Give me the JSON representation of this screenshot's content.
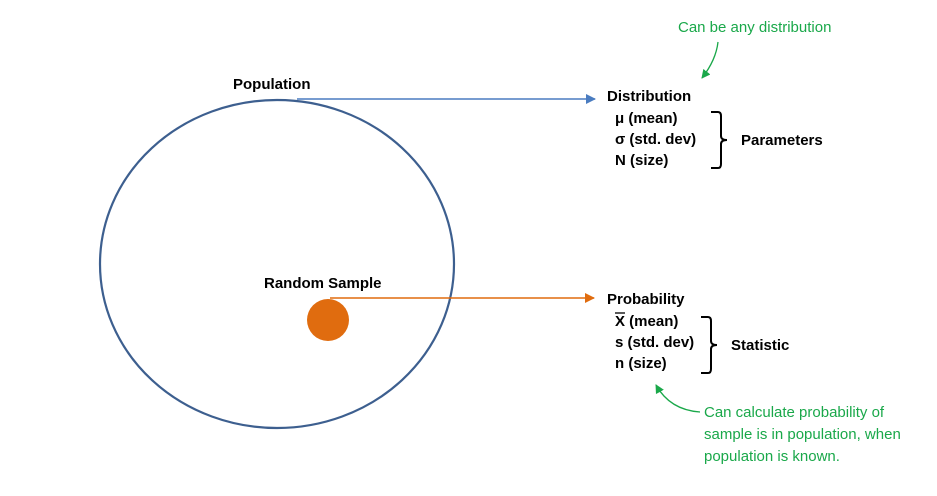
{
  "colors": {
    "population_circle": "#3d5f8f",
    "population_arrow": "#4a7cc0",
    "sample_dot": "#e06c0f",
    "sample_arrow": "#e06c0f",
    "note_green": "#1aa84a",
    "text": "#000000"
  },
  "population": {
    "label": "Population",
    "target_title": "Distribution",
    "items": [
      "μ (mean)",
      "σ (std. dev)",
      "N (size)"
    ],
    "group_label": "Parameters",
    "note": "Can be any distribution"
  },
  "sample": {
    "label": "Random Sample",
    "target_title": "Probability",
    "items": [
      "X (mean)",
      "s (std. dev)",
      "n (size)"
    ],
    "group_label": "Statistic",
    "note_lines": [
      "Can calculate probability of",
      "sample is in population, when",
      "population is known."
    ]
  }
}
